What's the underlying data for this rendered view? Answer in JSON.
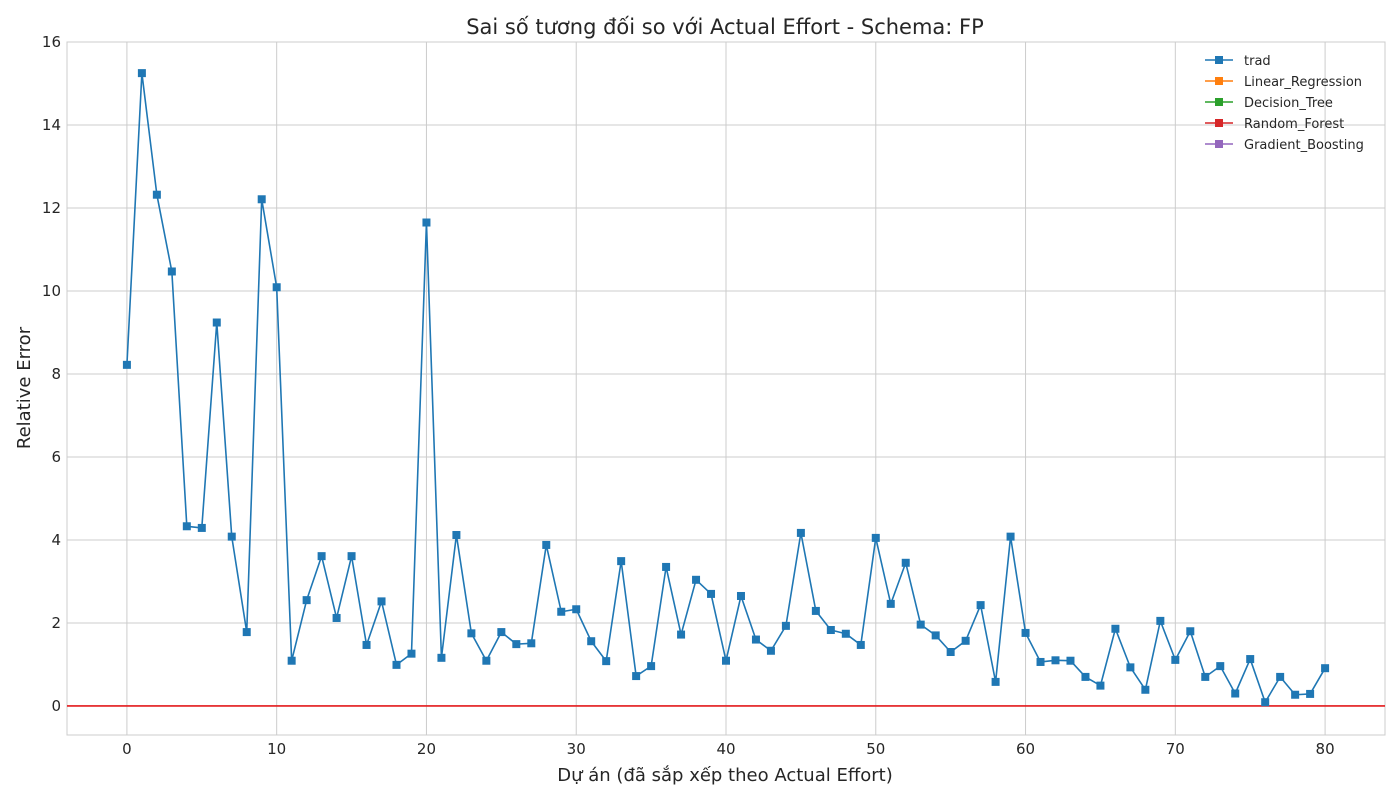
{
  "chart_data": {
    "type": "line",
    "title": "Sai số tương đối so với Actual Effort - Schema: FP",
    "xlabel": "Dự án (đã sắp xếp theo Actual Effort)",
    "ylabel": "Relative Error",
    "xlim": [
      -4,
      84
    ],
    "ylim": [
      -0.7,
      16
    ],
    "xticks": [
      0,
      10,
      20,
      30,
      40,
      50,
      60,
      70,
      80
    ],
    "yticks": [
      0,
      2,
      4,
      6,
      8,
      10,
      12,
      14,
      16
    ],
    "grid": true,
    "legend_position": "top-right",
    "reference_line": {
      "y": 0,
      "color": "#e31a1c"
    },
    "series": [
      {
        "name": "trad",
        "color": "#1f77b4",
        "marker": "square",
        "x": [
          0,
          1,
          2,
          3,
          4,
          5,
          6,
          7,
          8,
          9,
          10,
          11,
          12,
          13,
          14,
          15,
          16,
          17,
          18,
          19,
          20,
          21,
          22,
          23,
          24,
          25,
          26,
          27,
          28,
          29,
          30,
          31,
          32,
          33,
          34,
          35,
          36,
          37,
          38,
          39,
          40,
          41,
          42,
          43,
          44,
          45,
          46,
          47,
          48,
          49,
          50,
          51,
          52,
          53,
          54,
          55,
          56,
          57,
          58,
          59,
          60,
          61,
          62,
          63,
          64,
          65,
          66,
          67,
          68,
          69,
          70,
          71,
          72,
          73,
          74,
          75,
          76,
          77,
          78,
          79,
          80
        ],
        "values": [
          8.22,
          15.25,
          12.32,
          10.47,
          4.33,
          4.29,
          9.24,
          4.08,
          1.78,
          12.21,
          10.09,
          1.09,
          2.55,
          3.61,
          2.12,
          3.61,
          1.47,
          2.52,
          0.99,
          1.26,
          11.65,
          1.16,
          4.12,
          1.75,
          1.09,
          1.78,
          1.49,
          1.51,
          3.88,
          2.27,
          2.33,
          1.56,
          1.08,
          3.49,
          0.72,
          0.96,
          3.35,
          1.72,
          3.04,
          2.7,
          1.09,
          2.65,
          1.6,
          1.33,
          1.93,
          4.17,
          2.29,
          1.83,
          1.74,
          1.47,
          4.05,
          2.46,
          3.45,
          1.96,
          1.7,
          1.3,
          1.57,
          2.43,
          0.58,
          4.08,
          1.76,
          1.06,
          1.1,
          1.09,
          0.7,
          0.49,
          1.86,
          0.93,
          0.39,
          2.05,
          1.11,
          1.8,
          0.7,
          0.96,
          0.3,
          1.13,
          0.09,
          0.7,
          0.27,
          0.29,
          0.91
        ]
      },
      {
        "name": "Linear_Regression",
        "color": "#ff7f0e",
        "marker": "square",
        "x": [],
        "values": []
      },
      {
        "name": "Decision_Tree",
        "color": "#2ca02c",
        "marker": "square",
        "x": [],
        "values": []
      },
      {
        "name": "Random_Forest",
        "color": "#d62728",
        "marker": "square",
        "x": [],
        "values": []
      },
      {
        "name": "Gradient_Boosting",
        "color": "#9467bd",
        "marker": "square",
        "x": [],
        "values": []
      }
    ]
  }
}
